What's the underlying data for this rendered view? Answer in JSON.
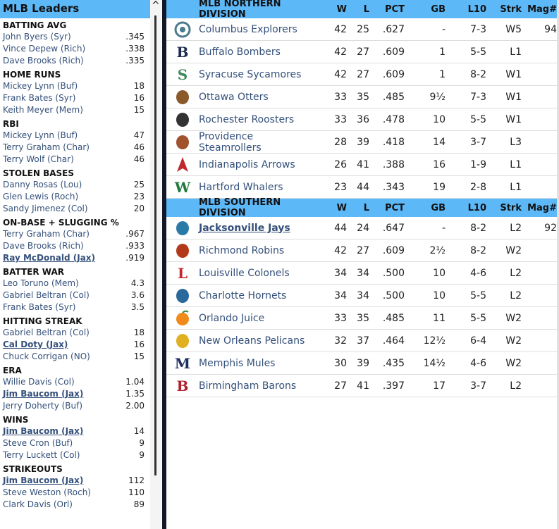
{
  "leaders": {
    "title": "MLB Leaders",
    "categories": [
      {
        "name": "BATTING AVG",
        "rows": [
          {
            "player": "John Byers (Syr)",
            "value": ".345"
          },
          {
            "player": "Vince Depew (Rich)",
            "value": ".338"
          },
          {
            "player": "Dave Brooks (Rich)",
            "value": ".335"
          }
        ]
      },
      {
        "name": "HOME RUNS",
        "rows": [
          {
            "player": "Mickey Lynn (Buf)",
            "value": "18"
          },
          {
            "player": "Frank Bates (Syr)",
            "value": "16"
          },
          {
            "player": "Keith Meyer (Mem)",
            "value": "15"
          }
        ]
      },
      {
        "name": "RBI",
        "rows": [
          {
            "player": "Mickey Lynn (Buf)",
            "value": "47"
          },
          {
            "player": "Terry Graham (Char)",
            "value": "46"
          },
          {
            "player": "Terry Wolf (Char)",
            "value": "46"
          }
        ]
      },
      {
        "name": "STOLEN BASES",
        "rows": [
          {
            "player": "Danny Rosas (Lou)",
            "value": "25"
          },
          {
            "player": "Glen Lewis (Roch)",
            "value": "23"
          },
          {
            "player": "Sandy Jimenez (Col)",
            "value": "20"
          }
        ]
      },
      {
        "name": "ON-BASE + SLUGGING %",
        "rows": [
          {
            "player": "Terry Graham (Char)",
            "value": ".967"
          },
          {
            "player": "Dave Brooks (Rich)",
            "value": ".933"
          },
          {
            "player": "Ray McDonald (Jax)",
            "value": ".919",
            "highlight": true
          }
        ]
      },
      {
        "name": "BATTER WAR",
        "rows": [
          {
            "player": "Leo Toruno (Mem)",
            "value": "4.3"
          },
          {
            "player": "Gabriel Beltran (Col)",
            "value": "3.6"
          },
          {
            "player": "Frank Bates (Syr)",
            "value": "3.5"
          }
        ]
      },
      {
        "name": "HITTING STREAK",
        "rows": [
          {
            "player": "Gabriel Beltran (Col)",
            "value": "18"
          },
          {
            "player": "Cal Doty (Jax)",
            "value": "16",
            "highlight": true
          },
          {
            "player": "Chuck Corrigan (NO)",
            "value": "15"
          }
        ]
      },
      {
        "name": "ERA",
        "rows": [
          {
            "player": "Willie Davis (Col)",
            "value": "1.04"
          },
          {
            "player": "Jim Baucom (Jax)",
            "value": "1.35",
            "highlight": true
          },
          {
            "player": "Jerry Doherty (Buf)",
            "value": "2.00"
          }
        ]
      },
      {
        "name": "WINS",
        "rows": [
          {
            "player": "Jim Baucom (Jax)",
            "value": "14",
            "highlight": true
          },
          {
            "player": "Steve Cron (Buf)",
            "value": "9"
          },
          {
            "player": "Terry Luckett (Col)",
            "value": "9"
          }
        ]
      },
      {
        "name": "STRIKEOUTS",
        "rows": [
          {
            "player": "Jim Baucom (Jax)",
            "value": "112",
            "highlight": true
          },
          {
            "player": "Steve Weston (Roch)",
            "value": "110"
          },
          {
            "player": "Clark Davis (Orl)",
            "value": "89"
          }
        ]
      }
    ]
  },
  "scroll_up": "^",
  "columns": {
    "w": "W",
    "l": "L",
    "pct": "PCT",
    "gb": "GB",
    "l10": "L10",
    "strk": "Strk",
    "mag": "Mag#"
  },
  "divisions": [
    {
      "name": "MLB NORTHERN DIVISION",
      "teams": [
        {
          "team": "Columbus Explorers",
          "w": "42",
          "l": "25",
          "pct": ".627",
          "gb": "-",
          "l10": "7-3",
          "strk": "W5",
          "mag": "94",
          "logo": "compass",
          "color": "#4a7a8c"
        },
        {
          "team": "Buffalo Bombers",
          "w": "42",
          "l": "27",
          "pct": ".609",
          "gb": "1",
          "l10": "5-5",
          "strk": "L1",
          "mag": "",
          "logo": "B",
          "color": "#1c2d4f"
        },
        {
          "team": "Syracuse Sycamores",
          "w": "42",
          "l": "27",
          "pct": ".609",
          "gb": "1",
          "l10": "8-2",
          "strk": "W1",
          "mag": "",
          "logo": "S",
          "color": "#3a8a5a"
        },
        {
          "team": "Ottawa Otters",
          "w": "33",
          "l": "35",
          "pct": ".485",
          "gb": "9½",
          "l10": "7-3",
          "strk": "W1",
          "mag": "",
          "logo": "otter",
          "color": "#8a5a2a"
        },
        {
          "team": "Rochester Roosters",
          "w": "33",
          "l": "36",
          "pct": ".478",
          "gb": "10",
          "l10": "5-5",
          "strk": "W1",
          "mag": "",
          "logo": "rooster",
          "color": "#333333"
        },
        {
          "team": "Providence Steamrollers",
          "w": "28",
          "l": "39",
          "pct": ".418",
          "gb": "14",
          "l10": "3-7",
          "strk": "L3",
          "mag": "",
          "logo": "roller",
          "color": "#a0522d"
        },
        {
          "team": "Indianapolis Arrows",
          "w": "26",
          "l": "41",
          "pct": ".388",
          "gb": "16",
          "l10": "1-9",
          "strk": "L1",
          "mag": "",
          "logo": "arrow",
          "color": "#c0282d"
        },
        {
          "team": "Hartford Whalers",
          "w": "23",
          "l": "44",
          "pct": ".343",
          "gb": "19",
          "l10": "2-8",
          "strk": "L1",
          "mag": "",
          "logo": "W",
          "color": "#1d7a3a"
        }
      ]
    },
    {
      "name": "MLB SOUTHERN DIVISION",
      "teams": [
        {
          "team": "Jacksonville Jays",
          "w": "44",
          "l": "24",
          "pct": ".647",
          "gb": "-",
          "l10": "8-2",
          "strk": "L2",
          "mag": "92",
          "logo": "jay",
          "color": "#2a7aa8",
          "highlight": true
        },
        {
          "team": "Richmond Robins",
          "w": "42",
          "l": "27",
          "pct": ".609",
          "gb": "2½",
          "l10": "8-2",
          "strk": "W2",
          "mag": "",
          "logo": "robin",
          "color": "#b23a1a"
        },
        {
          "team": "Louisville Colonels",
          "w": "34",
          "l": "34",
          "pct": ".500",
          "gb": "10",
          "l10": "4-6",
          "strk": "L2",
          "mag": "",
          "logo": "L",
          "color": "#c0282d"
        },
        {
          "team": "Charlotte Hornets",
          "w": "34",
          "l": "34",
          "pct": ".500",
          "gb": "10",
          "l10": "5-5",
          "strk": "L2",
          "mag": "",
          "logo": "hornet",
          "color": "#2a6a9a"
        },
        {
          "team": "Orlando Juice",
          "w": "33",
          "l": "35",
          "pct": ".485",
          "gb": "11",
          "l10": "5-5",
          "strk": "W2",
          "mag": "",
          "logo": "orange",
          "color": "#f08a1a"
        },
        {
          "team": "New Orleans Pelicans",
          "w": "32",
          "l": "37",
          "pct": ".464",
          "gb": "12½",
          "l10": "6-4",
          "strk": "W2",
          "mag": "",
          "logo": "pelican",
          "color": "#e0b020"
        },
        {
          "team": "Memphis Mules",
          "w": "30",
          "l": "39",
          "pct": ".435",
          "gb": "14½",
          "l10": "4-6",
          "strk": "W2",
          "mag": "",
          "logo": "M",
          "color": "#1c2d5f"
        },
        {
          "team": "Birmingham Barons",
          "w": "27",
          "l": "41",
          "pct": ".397",
          "gb": "17",
          "l10": "3-7",
          "strk": "L2",
          "mag": "",
          "logo": "B",
          "color": "#b0202d"
        }
      ]
    }
  ]
}
